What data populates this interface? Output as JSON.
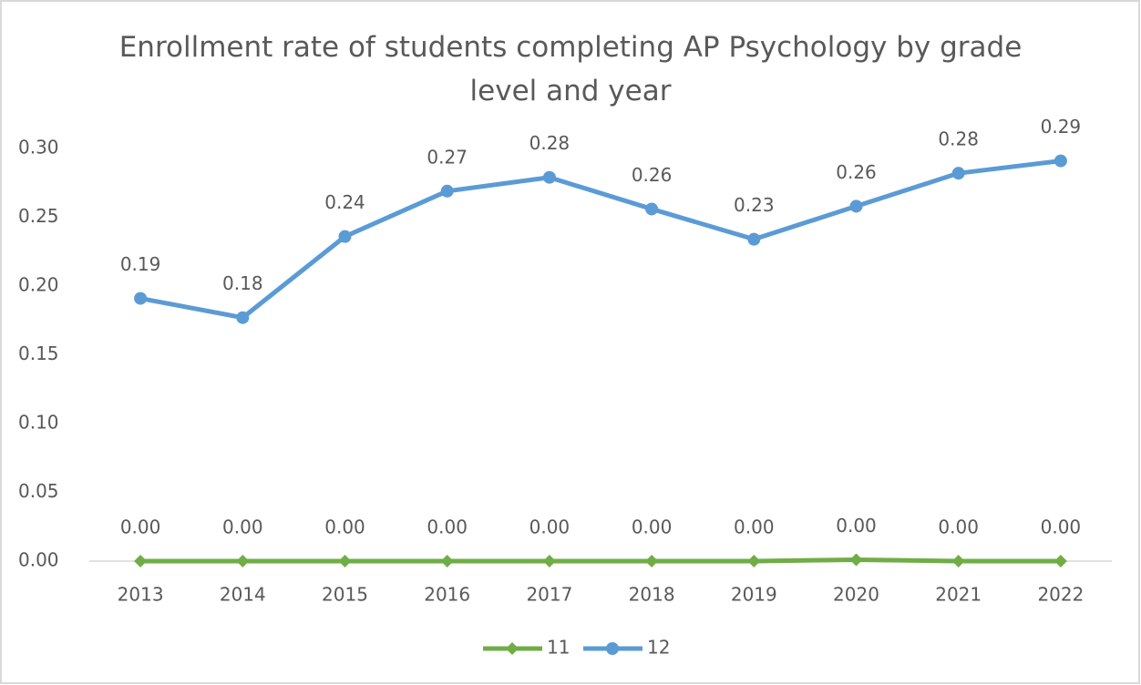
{
  "chart_data": {
    "type": "line",
    "title": "Enrollment rate of students completing AP Psychology by grade level and year",
    "categories": [
      "2013",
      "2014",
      "2015",
      "2016",
      "2017",
      "2018",
      "2019",
      "2020",
      "2021",
      "2022"
    ],
    "series": [
      {
        "name": "11",
        "color": "#70ad47",
        "marker": "diamond",
        "values": [
          0,
          0,
          0,
          0,
          0,
          0,
          0,
          0.001,
          0,
          0
        ],
        "value_labels": [
          "0.00",
          "0.00",
          "0.00",
          "0.00",
          "0.00",
          "0.00",
          "0.00",
          "0.00",
          "0.00",
          "0.00"
        ]
      },
      {
        "name": "12",
        "color": "#5b9bd5",
        "marker": "circle",
        "values": [
          0.191,
          0.177,
          0.236,
          0.269,
          0.279,
          0.256,
          0.234,
          0.258,
          0.282,
          0.291
        ],
        "value_labels": [
          "0.19",
          "0.18",
          "0.24",
          "0.27",
          "0.28",
          "0.26",
          "0.23",
          "0.26",
          "0.28",
          "0.29"
        ]
      }
    ],
    "ylim": [
      0,
      0.3
    ],
    "yticks": [
      {
        "value": 0,
        "label": "0.00"
      },
      {
        "value": 0.05,
        "label": "0.05"
      },
      {
        "value": 0.1,
        "label": "0.10"
      },
      {
        "value": 0.15,
        "label": "0.15"
      },
      {
        "value": 0.2,
        "label": "0.20"
      },
      {
        "value": 0.25,
        "label": "0.25"
      },
      {
        "value": 0.3,
        "label": "0.30"
      }
    ],
    "grid": false
  }
}
